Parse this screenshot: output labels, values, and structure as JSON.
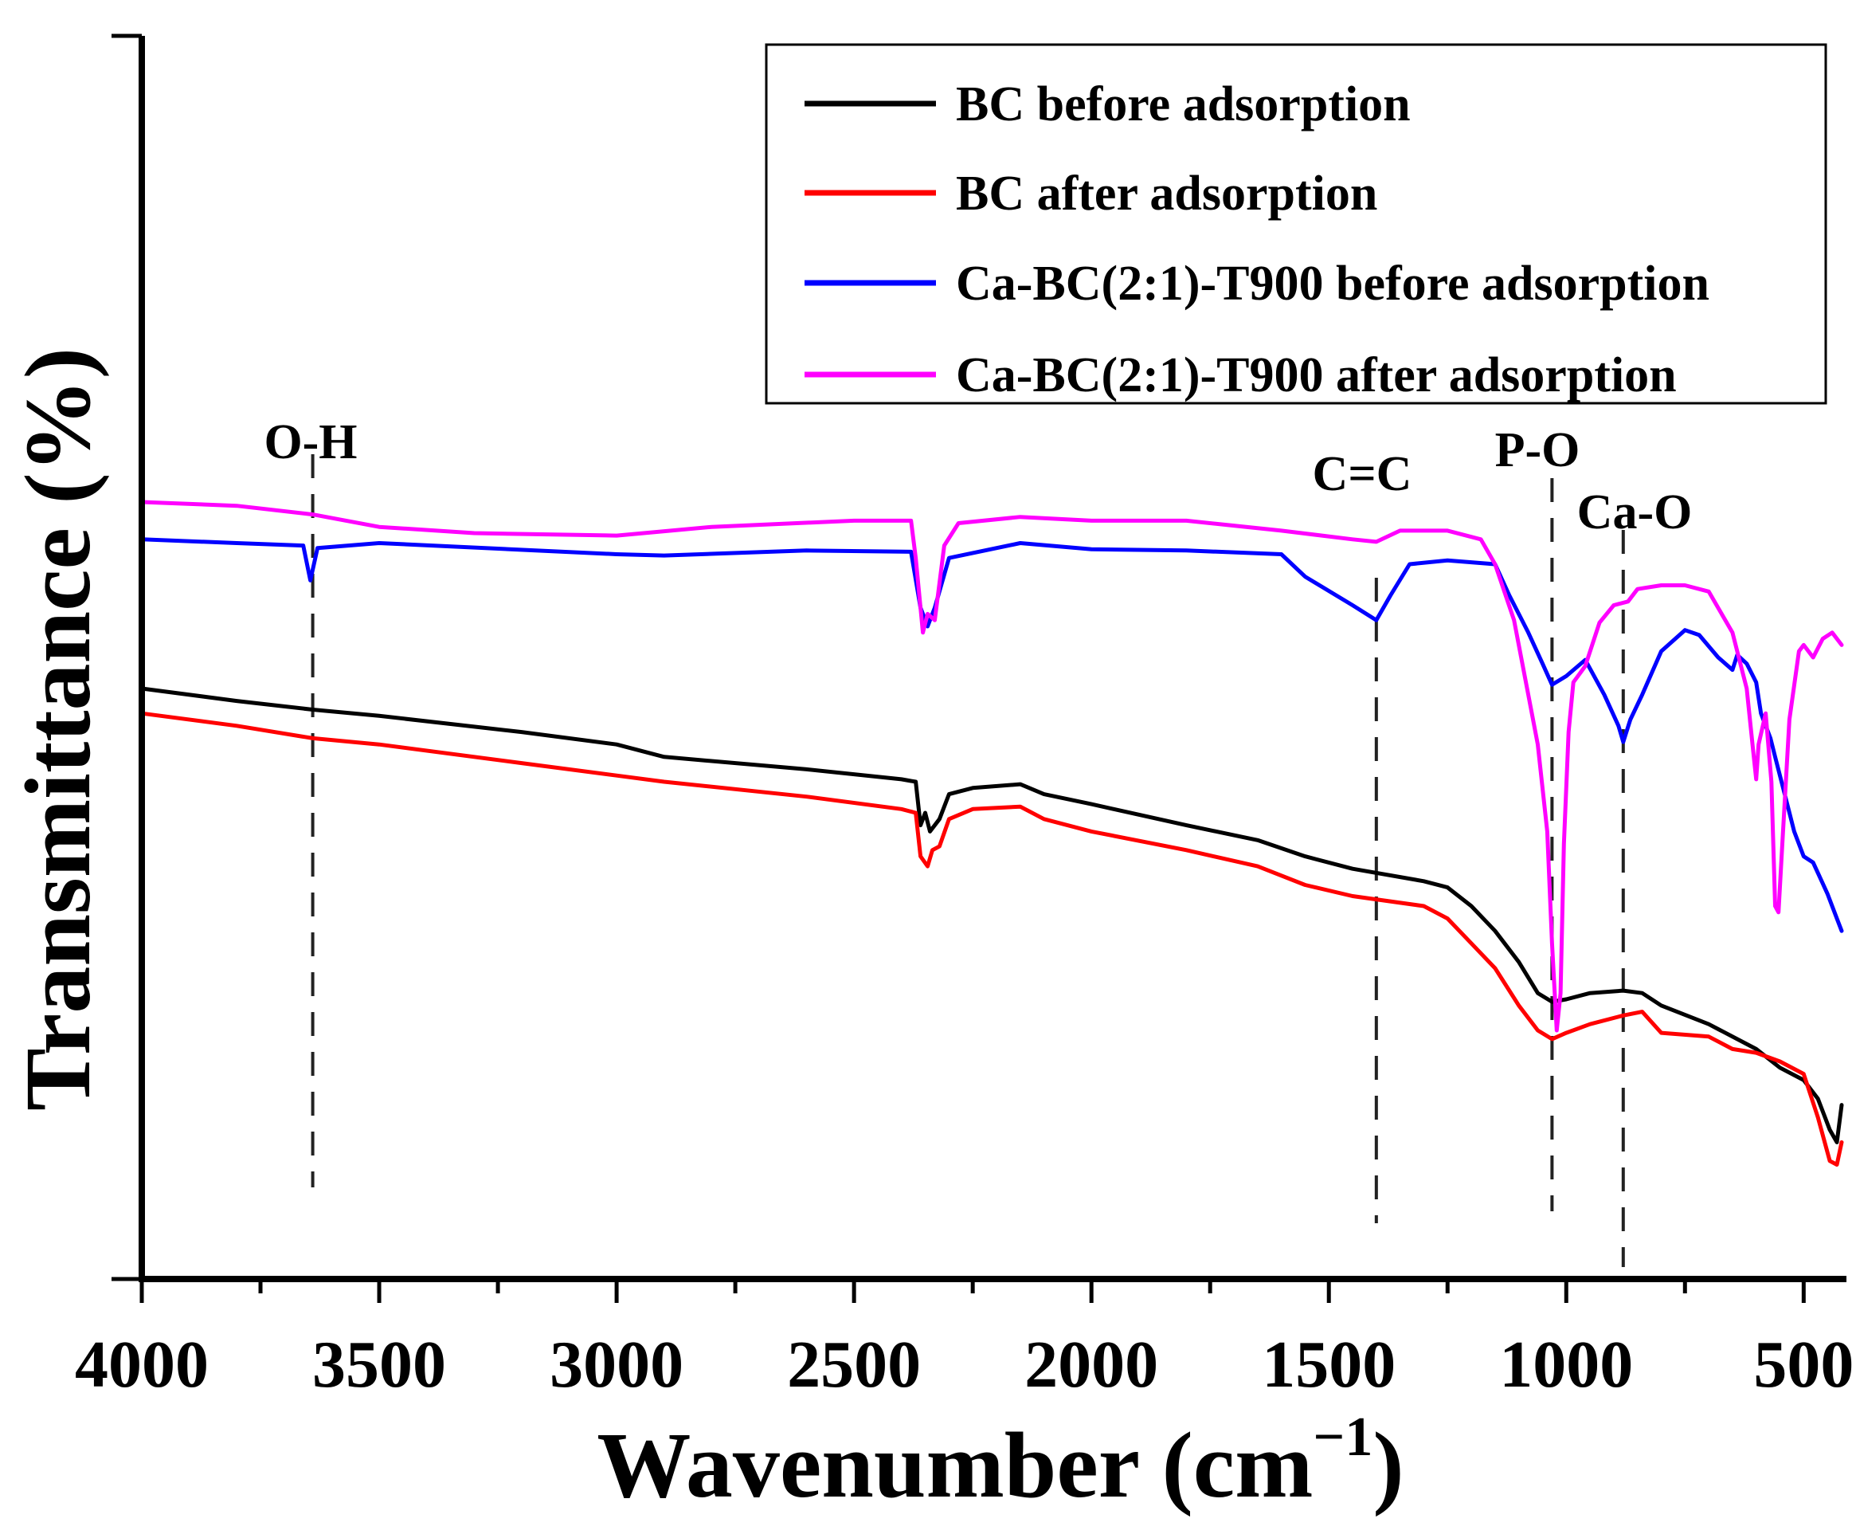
{
  "chart_data": {
    "type": "line",
    "title": "",
    "xlabel_main": "Wavenumber (cm",
    "xlabel_sup": "−1",
    "xlabel_close": ")",
    "ylabel": "Transmittance (%)",
    "xlim": [
      4000,
      420
    ],
    "ylim": [
      0,
      100
    ],
    "xticks": [
      4000,
      3500,
      3000,
      2500,
      2000,
      1500,
      1000,
      500
    ],
    "xtick_labels": [
      "4000",
      "3500",
      "3000",
      "2500",
      "2000",
      "1500",
      "1000",
      "500"
    ],
    "annotations": [
      {
        "label": "O-H",
        "x": 3640
      },
      {
        "label": "C=C",
        "x": 1400
      },
      {
        "label": "P-O",
        "x": 1030
      },
      {
        "label": "Ca-O",
        "x": 880
      }
    ],
    "legend": [
      "BC before adsorption",
      "BC after adsorption",
      "Ca-BC(2:1)-T900 before adsorption",
      "Ca-BC(2:1)-T900 after adsorption"
    ],
    "series": [
      {
        "name": "BC before adsorption",
        "color": "#000000",
        "points": [
          [
            4000,
            47.5
          ],
          [
            3800,
            46.5
          ],
          [
            3640,
            45.8
          ],
          [
            3500,
            45.3
          ],
          [
            3200,
            44
          ],
          [
            3000,
            43
          ],
          [
            2900,
            42
          ],
          [
            2600,
            41
          ],
          [
            2400,
            40.2
          ],
          [
            2370,
            40
          ],
          [
            2360,
            36.5
          ],
          [
            2350,
            37.5
          ],
          [
            2340,
            36
          ],
          [
            2320,
            37
          ],
          [
            2300,
            39
          ],
          [
            2250,
            39.5
          ],
          [
            2150,
            39.8
          ],
          [
            2100,
            39
          ],
          [
            2000,
            38.2
          ],
          [
            1800,
            36.5
          ],
          [
            1650,
            35.3
          ],
          [
            1550,
            34
          ],
          [
            1450,
            33
          ],
          [
            1300,
            32
          ],
          [
            1250,
            31.5
          ],
          [
            1200,
            30
          ],
          [
            1150,
            28
          ],
          [
            1100,
            25.5
          ],
          [
            1060,
            23
          ],
          [
            1030,
            22.3
          ],
          [
            1000,
            22.5
          ],
          [
            950,
            23
          ],
          [
            880,
            23.2
          ],
          [
            840,
            23
          ],
          [
            800,
            22
          ],
          [
            700,
            20.5
          ],
          [
            600,
            18.5
          ],
          [
            550,
            17
          ],
          [
            500,
            16
          ],
          [
            470,
            14.5
          ],
          [
            445,
            12
          ],
          [
            430,
            11
          ],
          [
            420,
            14
          ]
        ]
      },
      {
        "name": "BC after adsorption",
        "color": "#ff0000",
        "points": [
          [
            4000,
            45.5
          ],
          [
            3800,
            44.5
          ],
          [
            3640,
            43.5
          ],
          [
            3500,
            43
          ],
          [
            3200,
            41.5
          ],
          [
            3000,
            40.5
          ],
          [
            2900,
            40
          ],
          [
            2600,
            38.8
          ],
          [
            2400,
            37.8
          ],
          [
            2370,
            37.5
          ],
          [
            2360,
            34
          ],
          [
            2345,
            33.2
          ],
          [
            2335,
            34.5
          ],
          [
            2320,
            34.8
          ],
          [
            2300,
            37
          ],
          [
            2250,
            37.8
          ],
          [
            2150,
            38
          ],
          [
            2100,
            37
          ],
          [
            2000,
            36
          ],
          [
            1800,
            34.5
          ],
          [
            1650,
            33.2
          ],
          [
            1550,
            31.7
          ],
          [
            1450,
            30.8
          ],
          [
            1300,
            30
          ],
          [
            1250,
            29
          ],
          [
            1200,
            27
          ],
          [
            1150,
            25
          ],
          [
            1100,
            22
          ],
          [
            1060,
            20
          ],
          [
            1030,
            19.3
          ],
          [
            1000,
            19.8
          ],
          [
            950,
            20.5
          ],
          [
            880,
            21.2
          ],
          [
            840,
            21.5
          ],
          [
            800,
            19.8
          ],
          [
            700,
            19.5
          ],
          [
            650,
            18.5
          ],
          [
            600,
            18.2
          ],
          [
            550,
            17.5
          ],
          [
            500,
            16.5
          ],
          [
            470,
            13
          ],
          [
            445,
            9.5
          ],
          [
            430,
            9.2
          ],
          [
            420,
            11
          ]
        ]
      },
      {
        "name": "Ca-BC(2:1)-T900 before adsorption",
        "color": "#0000ff",
        "points": [
          [
            4000,
            59.5
          ],
          [
            3800,
            59.2
          ],
          [
            3660,
            59
          ],
          [
            3645,
            56.2
          ],
          [
            3630,
            58.8
          ],
          [
            3500,
            59.2
          ],
          [
            3000,
            58.3
          ],
          [
            2900,
            58.2
          ],
          [
            2600,
            58.6
          ],
          [
            2380,
            58.5
          ],
          [
            2360,
            54
          ],
          [
            2345,
            52.5
          ],
          [
            2330,
            54
          ],
          [
            2300,
            58
          ],
          [
            2150,
            59.2
          ],
          [
            2000,
            58.7
          ],
          [
            1800,
            58.6
          ],
          [
            1600,
            58.3
          ],
          [
            1550,
            56.5
          ],
          [
            1450,
            54.2
          ],
          [
            1400,
            53
          ],
          [
            1370,
            55
          ],
          [
            1330,
            57.5
          ],
          [
            1250,
            57.8
          ],
          [
            1150,
            57.5
          ],
          [
            1120,
            55
          ],
          [
            1080,
            52
          ],
          [
            1050,
            49.5
          ],
          [
            1030,
            47.8
          ],
          [
            1000,
            48.5
          ],
          [
            960,
            49.8
          ],
          [
            920,
            47
          ],
          [
            890,
            44.5
          ],
          [
            880,
            43.2
          ],
          [
            865,
            45
          ],
          [
            840,
            47
          ],
          [
            800,
            50.5
          ],
          [
            750,
            52.2
          ],
          [
            720,
            51.8
          ],
          [
            680,
            50
          ],
          [
            650,
            49
          ],
          [
            640,
            50.2
          ],
          [
            620,
            49.5
          ],
          [
            600,
            48
          ],
          [
            590,
            45.5
          ],
          [
            570,
            43.5
          ],
          [
            560,
            42
          ],
          [
            540,
            39
          ],
          [
            520,
            36
          ],
          [
            500,
            34
          ],
          [
            480,
            33.5
          ],
          [
            450,
            31
          ],
          [
            430,
            29
          ],
          [
            420,
            28
          ]
        ]
      },
      {
        "name": "Ca-BC(2:1)-T900 after adsorption",
        "color": "#ff00ff",
        "points": [
          [
            4000,
            62.5
          ],
          [
            3800,
            62.2
          ],
          [
            3640,
            61.5
          ],
          [
            3500,
            60.5
          ],
          [
            3300,
            60
          ],
          [
            3000,
            59.8
          ],
          [
            2800,
            60.5
          ],
          [
            2500,
            61
          ],
          [
            2380,
            61
          ],
          [
            2370,
            58
          ],
          [
            2355,
            52
          ],
          [
            2345,
            53.5
          ],
          [
            2330,
            53
          ],
          [
            2310,
            59
          ],
          [
            2280,
            60.8
          ],
          [
            2150,
            61.3
          ],
          [
            2000,
            61
          ],
          [
            1800,
            61
          ],
          [
            1700,
            60.6
          ],
          [
            1600,
            60.2
          ],
          [
            1450,
            59.5
          ],
          [
            1400,
            59.3
          ],
          [
            1350,
            60.2
          ],
          [
            1250,
            60.2
          ],
          [
            1180,
            59.5
          ],
          [
            1150,
            57.5
          ],
          [
            1110,
            53
          ],
          [
            1080,
            47
          ],
          [
            1060,
            43
          ],
          [
            1040,
            36
          ],
          [
            1030,
            27
          ],
          [
            1020,
            20
          ],
          [
            1012,
            23
          ],
          [
            1005,
            35
          ],
          [
            995,
            44
          ],
          [
            985,
            48
          ],
          [
            960,
            49.3
          ],
          [
            930,
            52.8
          ],
          [
            900,
            54.2
          ],
          [
            870,
            54.5
          ],
          [
            850,
            55.5
          ],
          [
            800,
            55.8
          ],
          [
            750,
            55.8
          ],
          [
            700,
            55.3
          ],
          [
            650,
            52
          ],
          [
            620,
            47.5
          ],
          [
            605,
            42
          ],
          [
            600,
            40.2
          ],
          [
            595,
            43
          ],
          [
            580,
            45.5
          ],
          [
            568,
            40
          ],
          [
            560,
            30
          ],
          [
            553,
            29.5
          ],
          [
            545,
            35
          ],
          [
            530,
            45
          ],
          [
            510,
            50.5
          ],
          [
            500,
            51
          ],
          [
            480,
            50
          ],
          [
            460,
            51.5
          ],
          [
            440,
            52
          ],
          [
            420,
            51
          ]
        ]
      }
    ]
  }
}
